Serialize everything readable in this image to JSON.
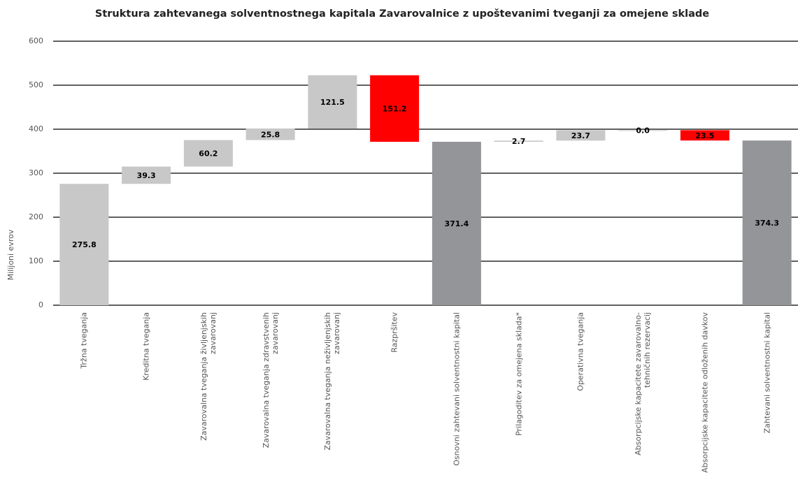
{
  "chart_data": {
    "type": "waterfall",
    "title": "Struktura zahtevanega solventnostnega kapitala Zavarovalnice z upoštevanimi tveganji za omejene sklade",
    "y_label": "Milijoni evrov",
    "categories": [
      "Tržna tveganja",
      "Kreditna tveganja",
      "Zavarovalna tveganja življenjskih\nzavarovanj",
      "Zavarovalna tveganja zdravstvenih\nzavarovanj",
      "Zavarovalna tveganja neživljenjskih\nzavarovanj",
      "Razpršitev",
      "Osnovni zahtevani solventnostni kapital",
      "Prilagoditev za omejena sklada*",
      "Operativna tveganja",
      "Absorpcijske kapacitete zavarovalno-\ntehničnih rezervacij",
      "Absorpcijske kapacitete odloženih davkov",
      "Zahtevani solventnostni kapital"
    ],
    "values": [
      275.8,
      39.3,
      60.2,
      25.8,
      121.5,
      -151.2,
      371.4,
      2.7,
      23.7,
      0.0,
      -23.5,
      374.3
    ],
    "value_labels": [
      "275.8",
      "39.3",
      "60.2",
      "25.8",
      "121.5",
      "151.2",
      "371.4",
      "2.7",
      "23.7",
      "0.0",
      "23.5",
      "374.3"
    ],
    "measure": [
      "relative",
      "relative",
      "relative",
      "relative",
      "relative",
      "relative",
      "total",
      "relative",
      "relative",
      "relative",
      "relative",
      "total"
    ],
    "colors": {
      "increase": "#c8c8c8",
      "decrease": "#ff0000",
      "total": "#939598"
    },
    "ylim": [
      0,
      600
    ],
    "yticks": [
      0,
      100,
      200,
      300,
      400,
      500,
      600
    ],
    "grid": true
  }
}
